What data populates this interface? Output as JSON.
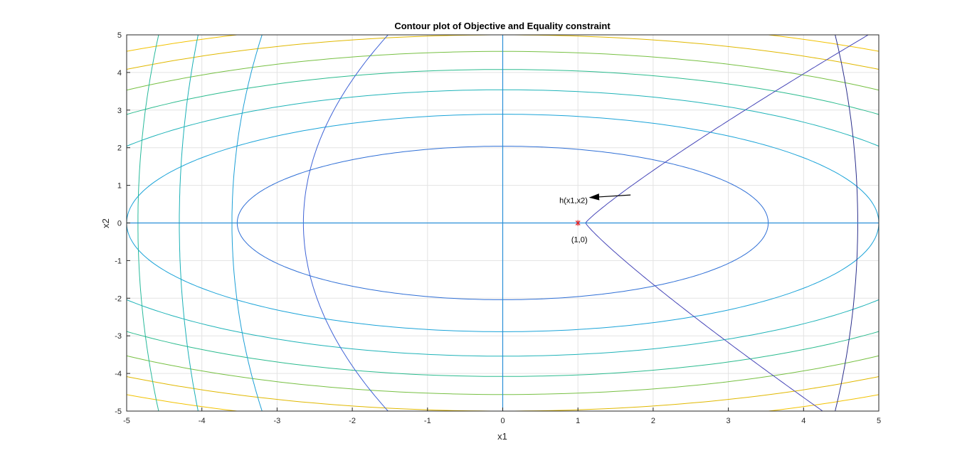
{
  "chart_data": {
    "type": "contour",
    "title": "Contour plot of Objective and Equality constraint",
    "xlabel": "x1",
    "ylabel": "x2",
    "xlim": [
      -5,
      5
    ],
    "ylim": [
      -5,
      5
    ],
    "xticks": [
      -5,
      -4,
      -3,
      -2,
      -1,
      0,
      1,
      2,
      3,
      4,
      5
    ],
    "yticks": [
      -5,
      -4,
      -3,
      -2,
      -1,
      0,
      1,
      2,
      3,
      4,
      5
    ],
    "grid": true,
    "objective_contours": {
      "description_shape": "ellipses centered at origin",
      "levels": [
        {
          "a": 3.53,
          "b": 2.04,
          "color": "#2f6fd6"
        },
        {
          "a": 5.0,
          "b": 2.89,
          "color": "#1aa3d8"
        },
        {
          "a": 6.12,
          "b": 3.54,
          "color": "#1fb3b8"
        },
        {
          "a": 7.07,
          "b": 4.08,
          "color": "#2bbb8e"
        },
        {
          "a": 7.9,
          "b": 4.56,
          "color": "#77c043"
        },
        {
          "a": 8.66,
          "b": 5.0,
          "color": "#e0b800"
        },
        {
          "a": 9.35,
          "b": 5.4,
          "color": "#f2c200"
        }
      ]
    },
    "constraint_contours": [
      {
        "x_at_y0": -2.65,
        "curve": 0.045,
        "color": "#3f63d6"
      },
      {
        "x_at_y0": -3.6,
        "curve": 0.016,
        "color": "#1c9fd6"
      },
      {
        "x_at_y0": -4.3,
        "curve": 0.01,
        "color": "#1ab0b6"
      },
      {
        "x_at_y0": -4.85,
        "curve": 0.011,
        "color": "#27b99a"
      },
      {
        "x_at_y0": 4.72,
        "curve": -0.012,
        "color": "#2b2f8c"
      },
      {
        "x_at_y0": 1.1,
        "curve_kind": "cusp",
        "color": "#4646b8"
      }
    ],
    "axis_lines": [
      {
        "orientation": "vertical",
        "value": 0,
        "color": "#2a8fd8"
      },
      {
        "orientation": "horizontal",
        "value": 0,
        "color": "#2a8fd8"
      }
    ],
    "point": {
      "x": 1,
      "y": 0,
      "label": "(1,0)",
      "color": "#e0262a"
    },
    "annotation": {
      "text": "h(x1,x2)",
      "arrow_from": [
        1.7,
        0.65
      ],
      "arrow_to": [
        1.12,
        0.62
      ]
    }
  }
}
